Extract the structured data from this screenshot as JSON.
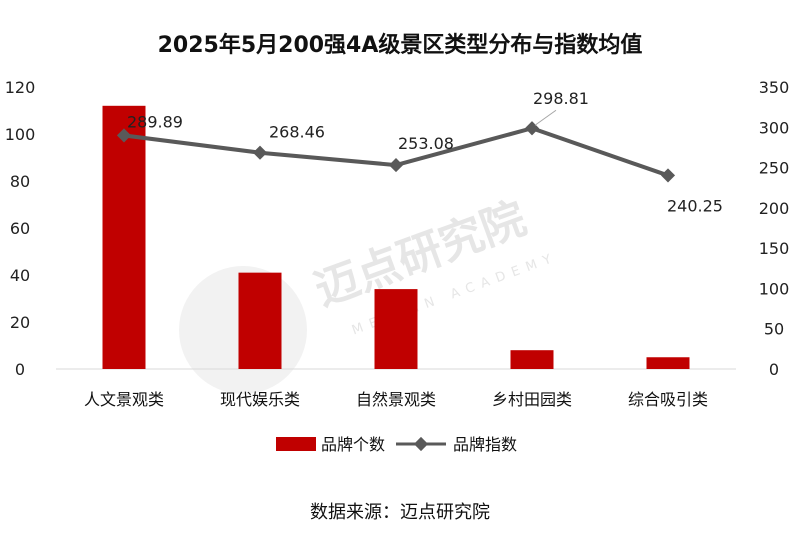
{
  "chart_data": {
    "type": "bar",
    "title": "2025年5月200强4A级景区类型分布与指数均值",
    "categories": [
      "人文景观类",
      "现代娱乐类",
      "自然景观类",
      "乡村田园类",
      "综合吸引类"
    ],
    "series": [
      {
        "name": "品牌个数",
        "type": "bar",
        "axis": "left",
        "color": "#c00000",
        "values": [
          112,
          41,
          34,
          8,
          5
        ]
      },
      {
        "name": "品牌指数",
        "type": "line",
        "axis": "right",
        "color": "#595959",
        "values": [
          289.89,
          268.46,
          253.08,
          298.81,
          240.25
        ]
      }
    ],
    "y_left": {
      "min": 0,
      "max": 120,
      "step": 20,
      "ticks": [
        "0",
        "20",
        "40",
        "60",
        "80",
        "100",
        "120"
      ]
    },
    "y_right": {
      "min": 0,
      "max": 350,
      "step": 50,
      "ticks": [
        "0",
        "50",
        "100",
        "150",
        "200",
        "250",
        "300",
        "350"
      ]
    },
    "line_labels": [
      "289.89",
      "268.46",
      "253.08",
      "298.81",
      "240.25"
    ],
    "legend_position": "bottom",
    "grid": false
  },
  "legend": {
    "bar_label": "品牌个数",
    "line_label": "品牌指数"
  },
  "source": "数据来源：迈点研究院",
  "watermark": {
    "main": "迈点研究院",
    "sub": "MEADIN ACADEMY"
  }
}
